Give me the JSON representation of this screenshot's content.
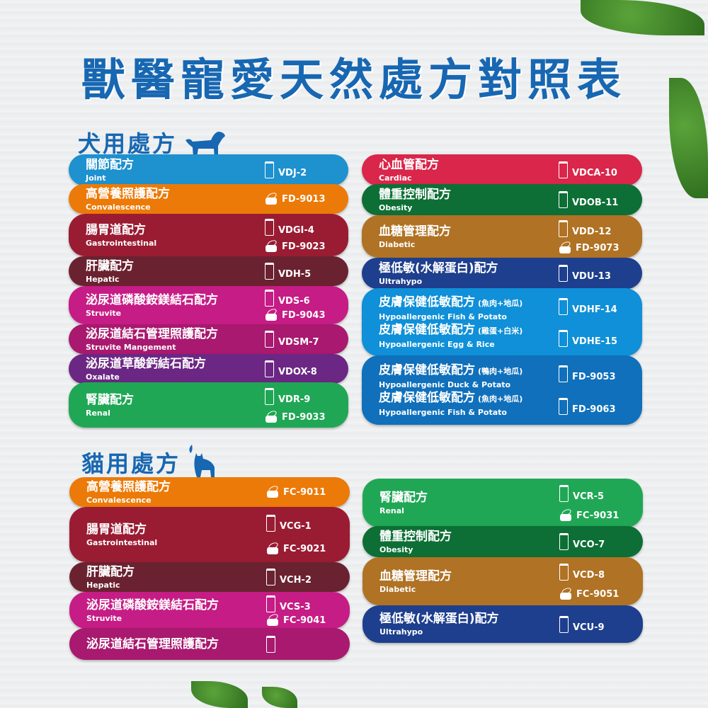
{
  "title": "獸醫寵愛天然處方對照表",
  "dog_section": {
    "label": "犬用處方",
    "left": [
      {
        "color": "#1e91cf",
        "entries": [
          {
            "zh": "關節配方",
            "en": "Joint"
          }
        ],
        "products": [
          {
            "type": "bag",
            "code": "VDJ-2"
          }
        ]
      },
      {
        "color": "#ec7a08",
        "entries": [
          {
            "zh": "高營養照護配方",
            "en": "Convalescence"
          }
        ],
        "products": [
          {
            "type": "can",
            "code": "FD-9013"
          }
        ]
      },
      {
        "color": "#9a1c33",
        "entries": [
          {
            "zh": "腸胃道配方",
            "en": "Gastrointestinal"
          }
        ],
        "products": [
          {
            "type": "bag",
            "code": "VDGI-4"
          },
          {
            "type": "can",
            "code": "FD-9023"
          }
        ]
      },
      {
        "color": "#6b2230",
        "entries": [
          {
            "zh": "肝臟配方",
            "en": "Hepatic"
          }
        ],
        "products": [
          {
            "type": "bag",
            "code": "VDH-5"
          }
        ]
      },
      {
        "color": "#c61c85",
        "entries": [
          {
            "zh": "泌尿道磷酸銨鎂結石配方",
            "en": "Struvite"
          }
        ],
        "products": [
          {
            "type": "bag",
            "code": "VDS-6"
          },
          {
            "type": "can",
            "code": "FD-9043"
          }
        ]
      },
      {
        "color": "#a8196f",
        "entries": [
          {
            "zh": "泌尿道結石管理照護配方",
            "en": "Struvite Mangement"
          }
        ],
        "products": [
          {
            "type": "bag",
            "code": "VDSM-7"
          }
        ]
      },
      {
        "color": "#6b2783",
        "entries": [
          {
            "zh": "泌尿道草酸鈣結石配方",
            "en": "Oxalate"
          }
        ],
        "products": [
          {
            "type": "bag",
            "code": "VDOX-8"
          }
        ]
      },
      {
        "color": "#20a755",
        "entries": [
          {
            "zh": "腎臟配方",
            "en": "Renal"
          }
        ],
        "products": [
          {
            "type": "bag",
            "code": "VDR-9"
          },
          {
            "type": "can",
            "code": "FD-9033"
          }
        ]
      }
    ],
    "right": [
      {
        "color": "#d9264a",
        "entries": [
          {
            "zh": "心血管配方",
            "en": "Cardiac"
          }
        ],
        "products": [
          {
            "type": "bag",
            "code": "VDCA-10"
          }
        ]
      },
      {
        "color": "#0d6f35",
        "entries": [
          {
            "zh": "體重控制配方",
            "en": "Obesity"
          }
        ],
        "products": [
          {
            "type": "bag",
            "code": "VDOB-11"
          }
        ]
      },
      {
        "color": "#b07224",
        "entries": [
          {
            "zh": "血糖管理配方",
            "en": "Diabetic"
          }
        ],
        "products": [
          {
            "type": "bag",
            "code": "VDD-12"
          },
          {
            "type": "can",
            "code": "FD-9073"
          }
        ]
      },
      {
        "color": "#1e3f8e",
        "entries": [
          {
            "zh": "極低敏(水解蛋白)配方",
            "en": "Ultrahypo"
          }
        ],
        "products": [
          {
            "type": "bag",
            "code": "VDU-13"
          }
        ]
      },
      {
        "color": "#0f90d8",
        "entries": [
          {
            "zh": "皮膚保健低敏配方",
            "note": "(魚肉+地瓜)",
            "en": "Hypoallergenic Fish & Potato"
          },
          {
            "zh": "皮膚保健低敏配方",
            "note": "(雞蛋+白米)",
            "en": "Hypoallergenic Egg & Rice"
          }
        ],
        "products": [
          {
            "type": "bag",
            "code": "VDHF-14"
          },
          {
            "type": "bag",
            "code": "VDHE-15"
          }
        ]
      },
      {
        "color": "#1070bb",
        "entries": [
          {
            "zh": "皮膚保健低敏配方",
            "note": "(鴨肉+地瓜)",
            "en": "Hypoallergenic Duck & Potato"
          },
          {
            "zh": "皮膚保健低敏配方",
            "note": "(魚肉+地瓜)",
            "en": "Hypoallergenic Fish & Potato"
          }
        ],
        "products": [
          {
            "type": "bag",
            "code": "FD-9053"
          },
          {
            "type": "bag",
            "code": "FD-9063"
          }
        ]
      }
    ]
  },
  "cat_section": {
    "label": "貓用處方",
    "left": [
      {
        "color": "#ec7a08",
        "entries": [
          {
            "zh": "高營養照護配方",
            "en": "Convalescence"
          }
        ],
        "products": [
          {
            "type": "can",
            "code": "FC-9011"
          }
        ]
      },
      {
        "color": "#9a1c33",
        "entries": [
          {
            "zh": "腸胃道配方",
            "en": "Gastrointestinal"
          }
        ],
        "products": [
          {
            "type": "bag",
            "code": "VCG-1"
          },
          {
            "type": "can",
            "code": "FC-9021"
          }
        ]
      },
      {
        "color": "#6b2230",
        "entries": [
          {
            "zh": "肝臟配方",
            "en": "Hepatic"
          }
        ],
        "products": [
          {
            "type": "bag",
            "code": "VCH-2"
          }
        ]
      },
      {
        "color": "#c61c85",
        "entries": [
          {
            "zh": "泌尿道磷酸銨鎂結石配方",
            "en": "Struvite"
          }
        ],
        "products": [
          {
            "type": "bag",
            "code": "VCS-3"
          },
          {
            "type": "can",
            "code": "FC-9041"
          }
        ]
      },
      {
        "color": "#a8196f",
        "entries": [
          {
            "zh": "泌尿道結石管理照護配方"
          }
        ],
        "products": [
          {
            "type": "bag",
            "code": ""
          }
        ]
      }
    ],
    "right": [
      {
        "color": "#20a755",
        "entries": [
          {
            "zh": "腎臟配方",
            "en": "Renal"
          }
        ],
        "products": [
          {
            "type": "bag",
            "code": "VCR-5"
          },
          {
            "type": "can",
            "code": "FC-9031"
          }
        ]
      },
      {
        "color": "#0d6f35",
        "entries": [
          {
            "zh": "體重控制配方",
            "en": "Obesity"
          }
        ],
        "products": [
          {
            "type": "bag",
            "code": "VCO-7"
          }
        ]
      },
      {
        "color": "#b07224",
        "entries": [
          {
            "zh": "血糖管理配方",
            "en": "Diabetic"
          }
        ],
        "products": [
          {
            "type": "bag",
            "code": "VCD-8"
          },
          {
            "type": "can",
            "code": "FC-9051"
          }
        ]
      },
      {
        "color": "#1e3f8e",
        "entries": [
          {
            "zh": "極低敏(水解蛋白)配方",
            "en": "Ultrahypo"
          }
        ],
        "products": [
          {
            "type": "bag",
            "code": "VCU-9"
          }
        ]
      }
    ]
  }
}
